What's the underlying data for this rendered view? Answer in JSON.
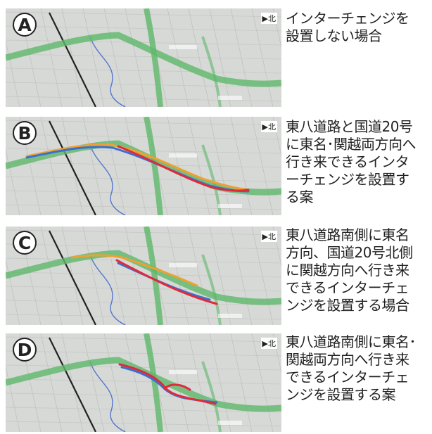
{
  "panels": [
    {
      "id": "A",
      "north": "北",
      "description": "インターチェンジを\n設置しない場合",
      "routes": []
    },
    {
      "id": "B",
      "north": "北",
      "description": "東八道路と国道20号\nに東名･関越両方向へ\n行き来できるインタ\nーチェンジを設置す\nる案",
      "routes": [
        "orange",
        "blue",
        "red"
      ]
    },
    {
      "id": "C",
      "north": "北",
      "description": "東八道路南側に東名\n方向、国道20号北側\nに関越方向へ行き来\nできるインターチェ\nンジを設置する場合",
      "routes": [
        "orange",
        "blue",
        "red"
      ]
    },
    {
      "id": "D",
      "north": "北",
      "description": "東八道路南側に東名･\n関越両方向へ行き来\nできるインターチェ\nンジを設置する案",
      "routes": [
        "blue",
        "red"
      ]
    }
  ],
  "colors": {
    "map_bg": "#d7d9d7",
    "expressway": "#5fb86a",
    "route_orange": "#f0a030",
    "route_blue": "#3a6fd0",
    "route_red": "#e02a3a",
    "river": "#5577cc"
  }
}
